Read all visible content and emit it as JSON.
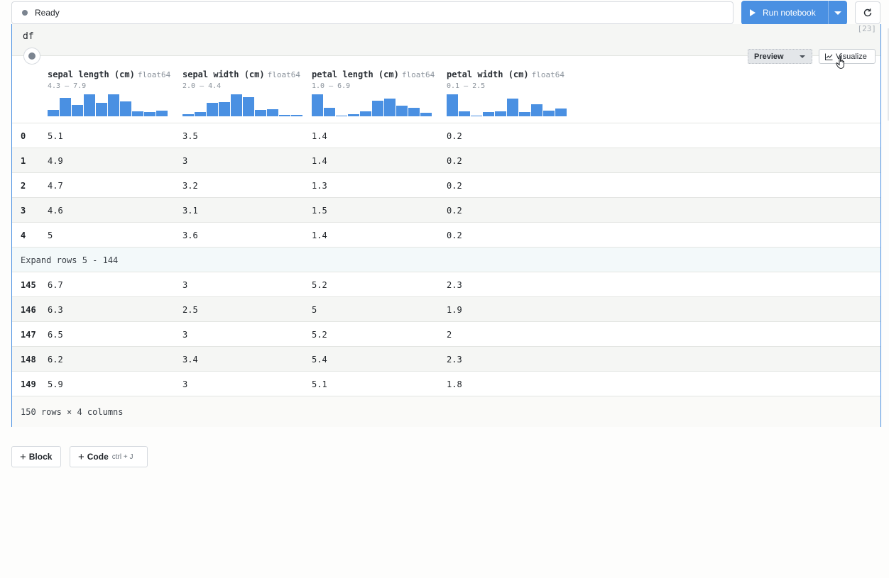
{
  "status": {
    "text": "Ready"
  },
  "run_button": {
    "label": "Run notebook"
  },
  "cell": {
    "code": "df",
    "exec_count": "[23]"
  },
  "toolbar": {
    "preview_label": "Preview",
    "visualize_label": "Visualize"
  },
  "columns": [
    {
      "name": "sepal length (cm)",
      "dtype": "float64",
      "range": "4.3 – 7.9",
      "hist": [
        0.3,
        0.85,
        0.5,
        1.0,
        0.6,
        1.0,
        0.68,
        0.22,
        0.2,
        0.25
      ]
    },
    {
      "name": "sepal width (cm)",
      "dtype": "float64",
      "range": "2.0 – 4.4",
      "hist": [
        0.1,
        0.2,
        0.6,
        0.65,
        1.0,
        0.88,
        0.3,
        0.33,
        0.08,
        0.06
      ]
    },
    {
      "name": "petal length (cm)",
      "dtype": "float64",
      "range": "1.0 – 6.9",
      "hist": [
        1.0,
        0.38,
        0.04,
        0.1,
        0.24,
        0.7,
        0.8,
        0.47,
        0.38,
        0.15
      ]
    },
    {
      "name": "petal width (cm)",
      "dtype": "float64",
      "range": "0.1 – 2.5",
      "hist": [
        1.0,
        0.22,
        0.03,
        0.2,
        0.22,
        0.82,
        0.18,
        0.55,
        0.25,
        0.36
      ]
    }
  ],
  "rows_top": [
    {
      "idx": "0",
      "v": [
        "5.1",
        "3.5",
        "1.4",
        "0.2"
      ]
    },
    {
      "idx": "1",
      "v": [
        "4.9",
        "3",
        "1.4",
        "0.2"
      ]
    },
    {
      "idx": "2",
      "v": [
        "4.7",
        "3.2",
        "1.3",
        "0.2"
      ]
    },
    {
      "idx": "3",
      "v": [
        "4.6",
        "3.1",
        "1.5",
        "0.2"
      ]
    },
    {
      "idx": "4",
      "v": [
        "5",
        "3.6",
        "1.4",
        "0.2"
      ]
    }
  ],
  "expand_label": "Expand rows 5 - 144",
  "rows_bottom": [
    {
      "idx": "145",
      "v": [
        "6.7",
        "3",
        "5.2",
        "2.3"
      ]
    },
    {
      "idx": "146",
      "v": [
        "6.3",
        "2.5",
        "5",
        "1.9"
      ]
    },
    {
      "idx": "147",
      "v": [
        "6.5",
        "3",
        "5.2",
        "2"
      ]
    },
    {
      "idx": "148",
      "v": [
        "6.2",
        "3.4",
        "5.4",
        "2.3"
      ]
    },
    {
      "idx": "149",
      "v": [
        "5.9",
        "3",
        "5.1",
        "1.8"
      ]
    }
  ],
  "footer": "150 rows × 4 columns",
  "add_block": {
    "label": "Block"
  },
  "add_code": {
    "label": "Code",
    "shortcut": "ctrl + J"
  },
  "icons": {
    "play": "play-icon",
    "refresh": "refresh-icon",
    "chart": "line-chart-icon",
    "cursor": "hand-cursor-icon"
  },
  "colors": {
    "accent": "#4a90e2",
    "bar": "#4a90e2"
  }
}
